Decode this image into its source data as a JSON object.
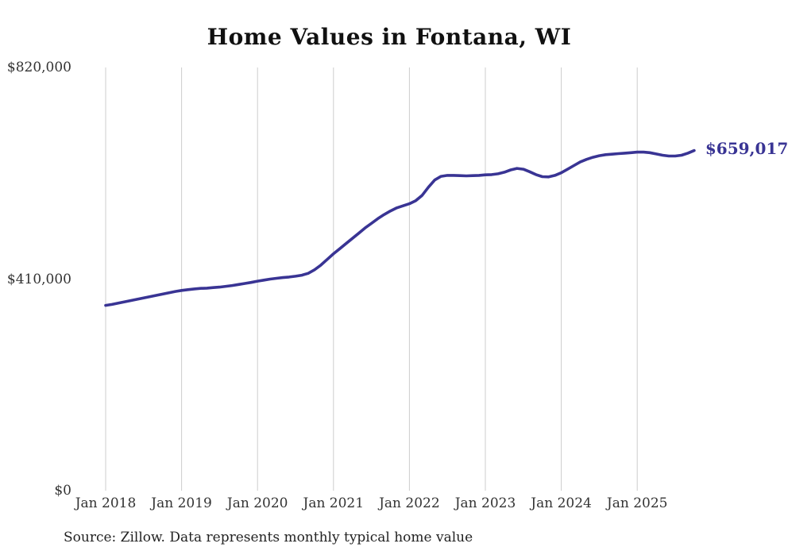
{
  "page": {
    "background": "#ffffff"
  },
  "chart_data": {
    "type": "line",
    "title": "Home Values in Fontana, WI",
    "source_note": "Source: Zillow. Data represents monthly typical home value",
    "end_label": "$659,017",
    "legend": "none",
    "grid": "vertical-yearly-only",
    "line_color": "#393494",
    "grid_color": "#cccccc",
    "tick_text_color": "#333333",
    "title_color": "#111111",
    "ylim": [
      0,
      820000
    ],
    "y_ticks": [
      {
        "label": "$0",
        "value": 0
      },
      {
        "label": "$410,000",
        "value": 410000
      },
      {
        "label": "$820,000",
        "value": 820000
      }
    ],
    "x_ticks": [
      "Jan 2018",
      "Jan 2019",
      "Jan 2020",
      "Jan 2021",
      "Jan 2022",
      "Jan 2023",
      "Jan 2024",
      "Jan 2025"
    ],
    "series": [
      {
        "name": "Typical home value",
        "frequency": "monthly",
        "start_month": "2018-01",
        "end_month": "2025-10",
        "values": [
          359000,
          361000,
          363500,
          366000,
          368500,
          371000,
          373500,
          376000,
          378500,
          381000,
          383500,
          386000,
          388000,
          389500,
          391000,
          392000,
          392500,
          393500,
          394500,
          396000,
          397500,
          399500,
          401500,
          403500,
          406000,
          408000,
          410000,
          411500,
          413000,
          414000,
          415500,
          417500,
          421000,
          428000,
          437000,
          448000,
          459000,
          469000,
          479000,
          489000,
          499000,
          509000,
          518000,
          527000,
          535000,
          542000,
          548000,
          552000,
          556000,
          562000,
          572000,
          588000,
          602000,
          609000,
          611000,
          611000,
          610500,
          610000,
          610500,
          611000,
          612000,
          612500,
          614000,
          617000,
          621500,
          624500,
          623000,
          618000,
          612500,
          608500,
          608000,
          611000,
          616000,
          623000,
          630000,
          637000,
          642000,
          646000,
          649000,
          651000,
          652000,
          653000,
          654000,
          655000,
          656000,
          656000,
          655000,
          652500,
          650000,
          648500,
          648500,
          650000,
          654000,
          659017
        ]
      }
    ]
  }
}
